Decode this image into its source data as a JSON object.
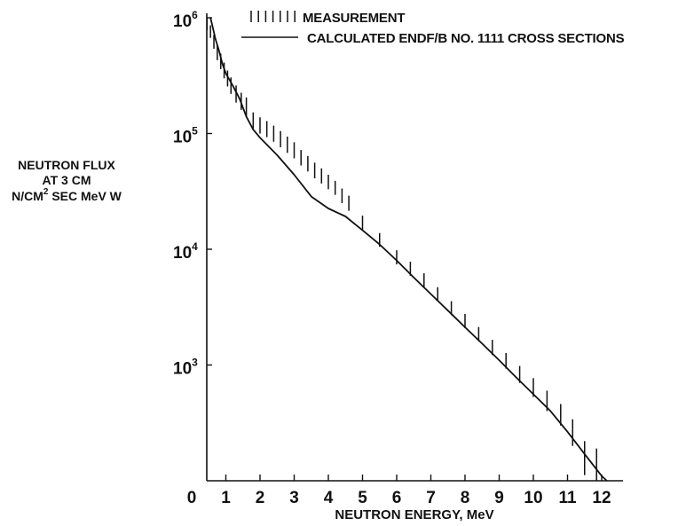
{
  "chart_data": {
    "type": "line",
    "title": "",
    "xlabel": "NEUTRON ENERGY, MeV",
    "ylabel_lines": [
      "NEUTRON FLUX",
      "AT 3 CM",
      "N/CM",
      "2",
      " SEC MeV W"
    ],
    "xlim": [
      0,
      12.5
    ],
    "ylim": [
      100,
      1000000
    ],
    "yscale": "log",
    "x_ticks": [
      "0",
      "1",
      "2",
      "3",
      "4",
      "5",
      "6",
      "7",
      "8",
      "9",
      "10",
      "11",
      "12"
    ],
    "y_ticks": [
      {
        "base": "10",
        "exp": "3",
        "value": 1000
      },
      {
        "base": "10",
        "exp": "4",
        "value": 10000
      },
      {
        "base": "10",
        "exp": "5",
        "value": 100000
      },
      {
        "base": "10",
        "exp": "6",
        "value": 1000000
      }
    ],
    "grid": false,
    "legend_position": "top",
    "series": [
      {
        "name": "MEASUREMENT",
        "style": "error-bars",
        "x": [
          0.45,
          0.55,
          0.65,
          0.75,
          0.85,
          0.95,
          1.05,
          1.15,
          1.3,
          1.45,
          1.6,
          1.8,
          2.0,
          2.2,
          2.4,
          2.6,
          2.8,
          3.0,
          3.2,
          3.4,
          3.6,
          3.8,
          4.0,
          4.2,
          4.4,
          4.6,
          5.0,
          5.5,
          6.0,
          6.4,
          6.8,
          7.2,
          7.6,
          8.0,
          8.4,
          8.8,
          9.2,
          9.6,
          10.0,
          10.4,
          10.8,
          11.15,
          11.5,
          11.85
        ],
        "y": [
          880000,
          760000,
          620000,
          500000,
          420000,
          350000,
          300000,
          260000,
          220000,
          190000,
          170000,
          130000,
          118000,
          110000,
          100000,
          90000,
          80000,
          72000,
          62000,
          55000,
          48000,
          43000,
          38000,
          34000,
          29000,
          25000,
          17000,
          12000,
          8500,
          6800,
          5400,
          4100,
          3100,
          2400,
          1850,
          1420,
          1090,
          830,
          640,
          490,
          370,
          260,
          160,
          140
        ],
        "err_low": [
          780000,
          670000,
          540000,
          430000,
          360000,
          300000,
          255000,
          220000,
          185000,
          160000,
          140000,
          110000,
          100000,
          93000,
          85000,
          76000,
          68000,
          61000,
          53000,
          47000,
          41000,
          37000,
          33000,
          29500,
          25000,
          21500,
          14800,
          10500,
          7400,
          5900,
          4700,
          3560,
          2700,
          2080,
          1600,
          1220,
          930,
          700,
          530,
          400,
          300,
          200,
          112,
          100
        ],
        "err_high": [
          990000,
          860000,
          710000,
          580000,
          490000,
          410000,
          350000,
          305000,
          260000,
          225000,
          205000,
          152000,
          138000,
          128000,
          117000,
          105000,
          94000,
          84000,
          72000,
          64000,
          56000,
          50000,
          44000,
          39000,
          33500,
          29000,
          19500,
          13800,
          9800,
          7800,
          6200,
          4700,
          3560,
          2760,
          2130,
          1650,
          1270,
          980,
          770,
          600,
          460,
          340,
          220,
          190
        ]
      },
      {
        "name": "CALCULATED ENDF/B NO. 1111 CROSS SECTIONS",
        "style": "line",
        "x": [
          0.55,
          0.7,
          0.8,
          0.9,
          1.0,
          1.2,
          1.4,
          1.6,
          1.8,
          2.0,
          2.5,
          3.0,
          3.5,
          4.0,
          4.5,
          5.0,
          5.5,
          6.0,
          6.5,
          7.0,
          7.5,
          8.0,
          8.5,
          9.0,
          9.5,
          10.0,
          10.5,
          11.0,
          11.5,
          12.0,
          12.15
        ],
        "y": [
          1000000,
          650000,
          520000,
          400000,
          330000,
          260000,
          200000,
          140000,
          108000,
          92000,
          65000,
          44000,
          28500,
          22500,
          19200,
          14600,
          11000,
          8000,
          5700,
          4100,
          2950,
          2120,
          1530,
          1100,
          780,
          560,
          400,
          265,
          170,
          110,
          100
        ]
      }
    ]
  }
}
